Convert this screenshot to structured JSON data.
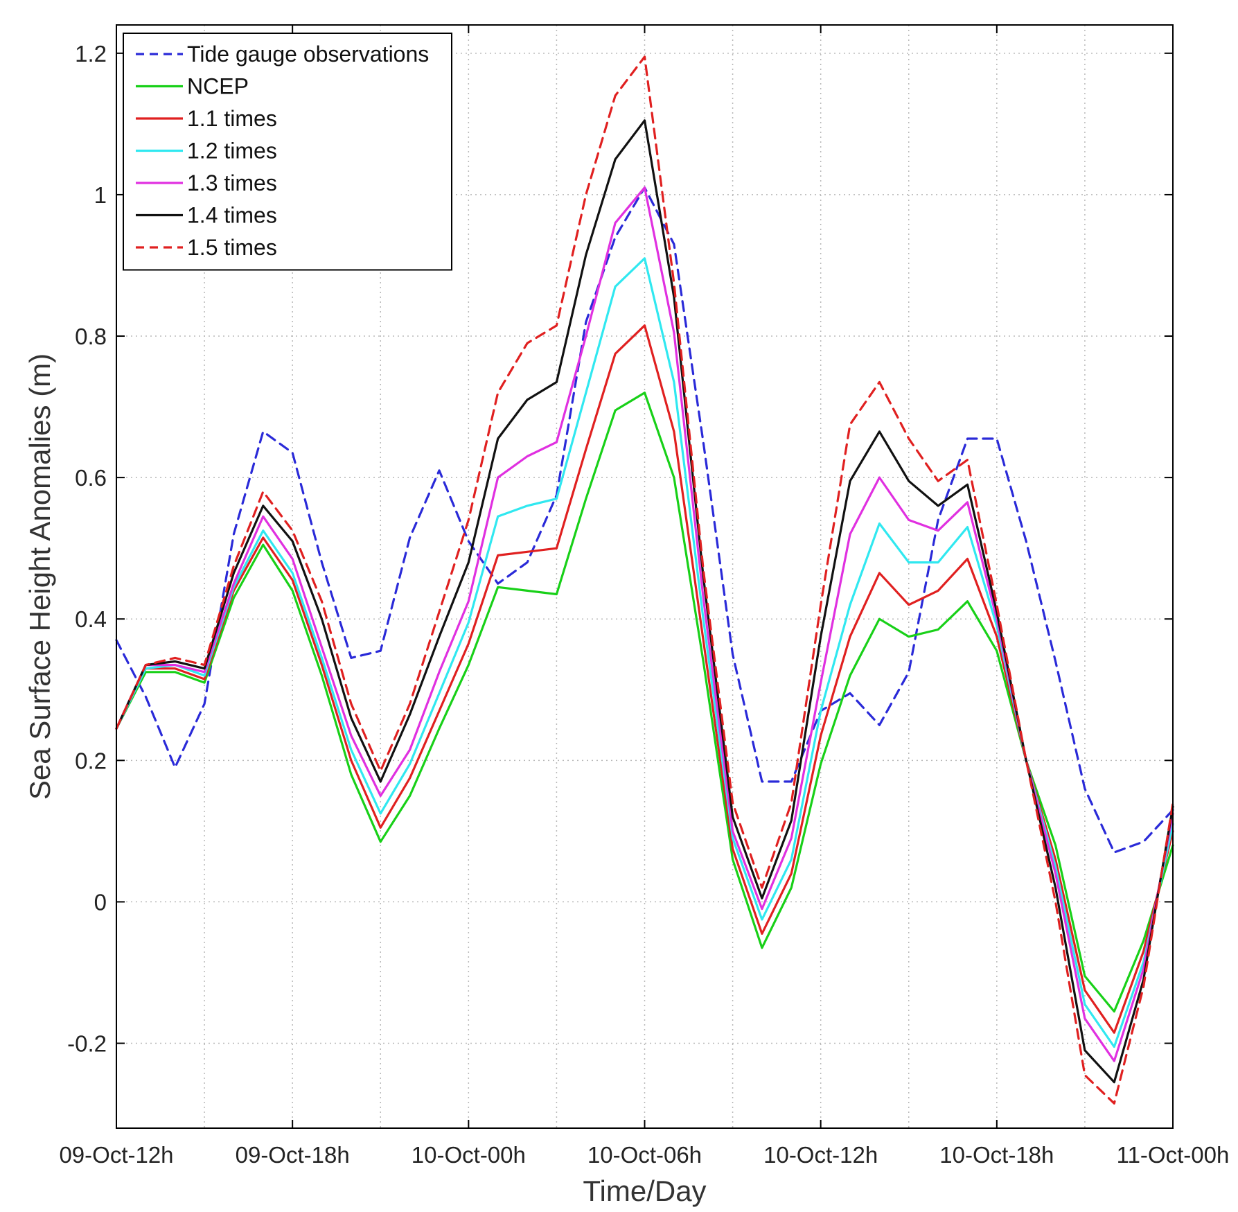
{
  "chart_data": {
    "type": "line",
    "xlabel": "Time/Day",
    "ylabel": "Sea Surface Height Anomalies (m)",
    "xlim": [
      0,
      36
    ],
    "ylim": [
      -0.32,
      1.24
    ],
    "grid": true,
    "legend_position": "top-left",
    "x_ticks": [
      0,
      6,
      12,
      18,
      24,
      30,
      36
    ],
    "x_tick_labels": [
      "09-Oct-12h",
      "09-Oct-18h",
      "10-Oct-00h",
      "10-Oct-06h",
      "10-Oct-12h",
      "10-Oct-18h",
      "11-Oct-00h"
    ],
    "y_ticks": [
      -0.2,
      0,
      0.2,
      0.4,
      0.6,
      0.8,
      1,
      1.2
    ],
    "y_tick_labels": [
      "-0.2",
      "0",
      "0.2",
      "0.4",
      "0.6",
      "0.8",
      "1",
      "1.2"
    ],
    "x": [
      0,
      1,
      2,
      3,
      4,
      5,
      6,
      7,
      8,
      9,
      10,
      11,
      12,
      13,
      14,
      15,
      16,
      17,
      18,
      19,
      20,
      21,
      22,
      23,
      24,
      25,
      26,
      27,
      28,
      29,
      30,
      31,
      32,
      33,
      34,
      35,
      36
    ],
    "series": [
      {
        "name": "Tide gauge observations",
        "color": "#2a2ad8",
        "dash": "dashed",
        "values": [
          0.37,
          0.29,
          0.19,
          0.28,
          0.52,
          0.665,
          0.635,
          0.48,
          0.345,
          0.355,
          0.515,
          0.61,
          0.51,
          0.45,
          0.48,
          0.575,
          0.82,
          0.94,
          1.01,
          0.93,
          0.65,
          0.35,
          0.17,
          0.17,
          0.27,
          0.295,
          0.25,
          0.325,
          0.54,
          0.655,
          0.655,
          0.51,
          0.34,
          0.16,
          0.07,
          0.085,
          0.13
        ]
      },
      {
        "name": "NCEP",
        "color": "#18d018",
        "dash": "solid",
        "values": [
          0.245,
          0.325,
          0.325,
          0.31,
          0.43,
          0.505,
          0.44,
          0.32,
          0.18,
          0.085,
          0.15,
          0.245,
          0.335,
          0.445,
          0.44,
          0.435,
          0.57,
          0.695,
          0.72,
          0.6,
          0.34,
          0.06,
          -0.065,
          0.02,
          0.195,
          0.32,
          0.4,
          0.375,
          0.385,
          0.425,
          0.355,
          0.2,
          0.08,
          -0.105,
          -0.155,
          -0.055,
          0.08
        ]
      },
      {
        "name": "1.1 times",
        "color": "#e02020",
        "dash": "solid",
        "values": [
          0.245,
          0.33,
          0.33,
          0.315,
          0.44,
          0.515,
          0.455,
          0.335,
          0.2,
          0.105,
          0.175,
          0.27,
          0.365,
          0.49,
          0.495,
          0.5,
          0.64,
          0.775,
          0.815,
          0.665,
          0.37,
          0.075,
          -0.045,
          0.04,
          0.235,
          0.375,
          0.465,
          0.42,
          0.44,
          0.485,
          0.375,
          0.2,
          0.06,
          -0.125,
          -0.185,
          -0.07,
          0.1
        ]
      },
      {
        "name": "1.2 times",
        "color": "#30e8f0",
        "dash": "solid",
        "values": [
          0.245,
          0.33,
          0.335,
          0.32,
          0.445,
          0.525,
          0.465,
          0.345,
          0.215,
          0.125,
          0.195,
          0.295,
          0.395,
          0.545,
          0.56,
          0.57,
          0.72,
          0.87,
          0.91,
          0.735,
          0.4,
          0.09,
          -0.025,
          0.06,
          0.27,
          0.42,
          0.535,
          0.48,
          0.48,
          0.53,
          0.39,
          0.2,
          0.05,
          -0.145,
          -0.205,
          -0.085,
          0.11
        ]
      },
      {
        "name": "1.3 times",
        "color": "#e030e0",
        "dash": "solid",
        "values": [
          0.245,
          0.335,
          0.335,
          0.325,
          0.45,
          0.545,
          0.485,
          0.36,
          0.235,
          0.15,
          0.215,
          0.325,
          0.425,
          0.6,
          0.63,
          0.65,
          0.8,
          0.96,
          1.01,
          0.805,
          0.43,
          0.1,
          -0.01,
          0.09,
          0.31,
          0.52,
          0.6,
          0.54,
          0.525,
          0.565,
          0.4,
          0.2,
          0.04,
          -0.165,
          -0.225,
          -0.095,
          0.125
        ]
      },
      {
        "name": "1.4 times",
        "color": "#111111",
        "dash": "solid",
        "values": [
          0.245,
          0.335,
          0.34,
          0.33,
          0.465,
          0.56,
          0.51,
          0.4,
          0.26,
          0.17,
          0.265,
          0.375,
          0.48,
          0.655,
          0.71,
          0.735,
          0.915,
          1.05,
          1.105,
          0.855,
          0.46,
          0.12,
          0.005,
          0.115,
          0.375,
          0.595,
          0.665,
          0.595,
          0.56,
          0.59,
          0.41,
          0.2,
          0.02,
          -0.21,
          -0.255,
          -0.11,
          0.135
        ]
      },
      {
        "name": "1.5 times",
        "color": "#e02020",
        "dash": "dashed",
        "values": [
          0.245,
          0.335,
          0.345,
          0.335,
          0.475,
          0.58,
          0.525,
          0.425,
          0.28,
          0.185,
          0.28,
          0.41,
          0.54,
          0.72,
          0.79,
          0.815,
          1.0,
          1.14,
          1.195,
          0.875,
          0.47,
          0.14,
          0.02,
          0.14,
          0.42,
          0.675,
          0.735,
          0.655,
          0.595,
          0.625,
          0.42,
          0.2,
          0.0,
          -0.245,
          -0.285,
          -0.12,
          0.14
        ]
      }
    ]
  }
}
